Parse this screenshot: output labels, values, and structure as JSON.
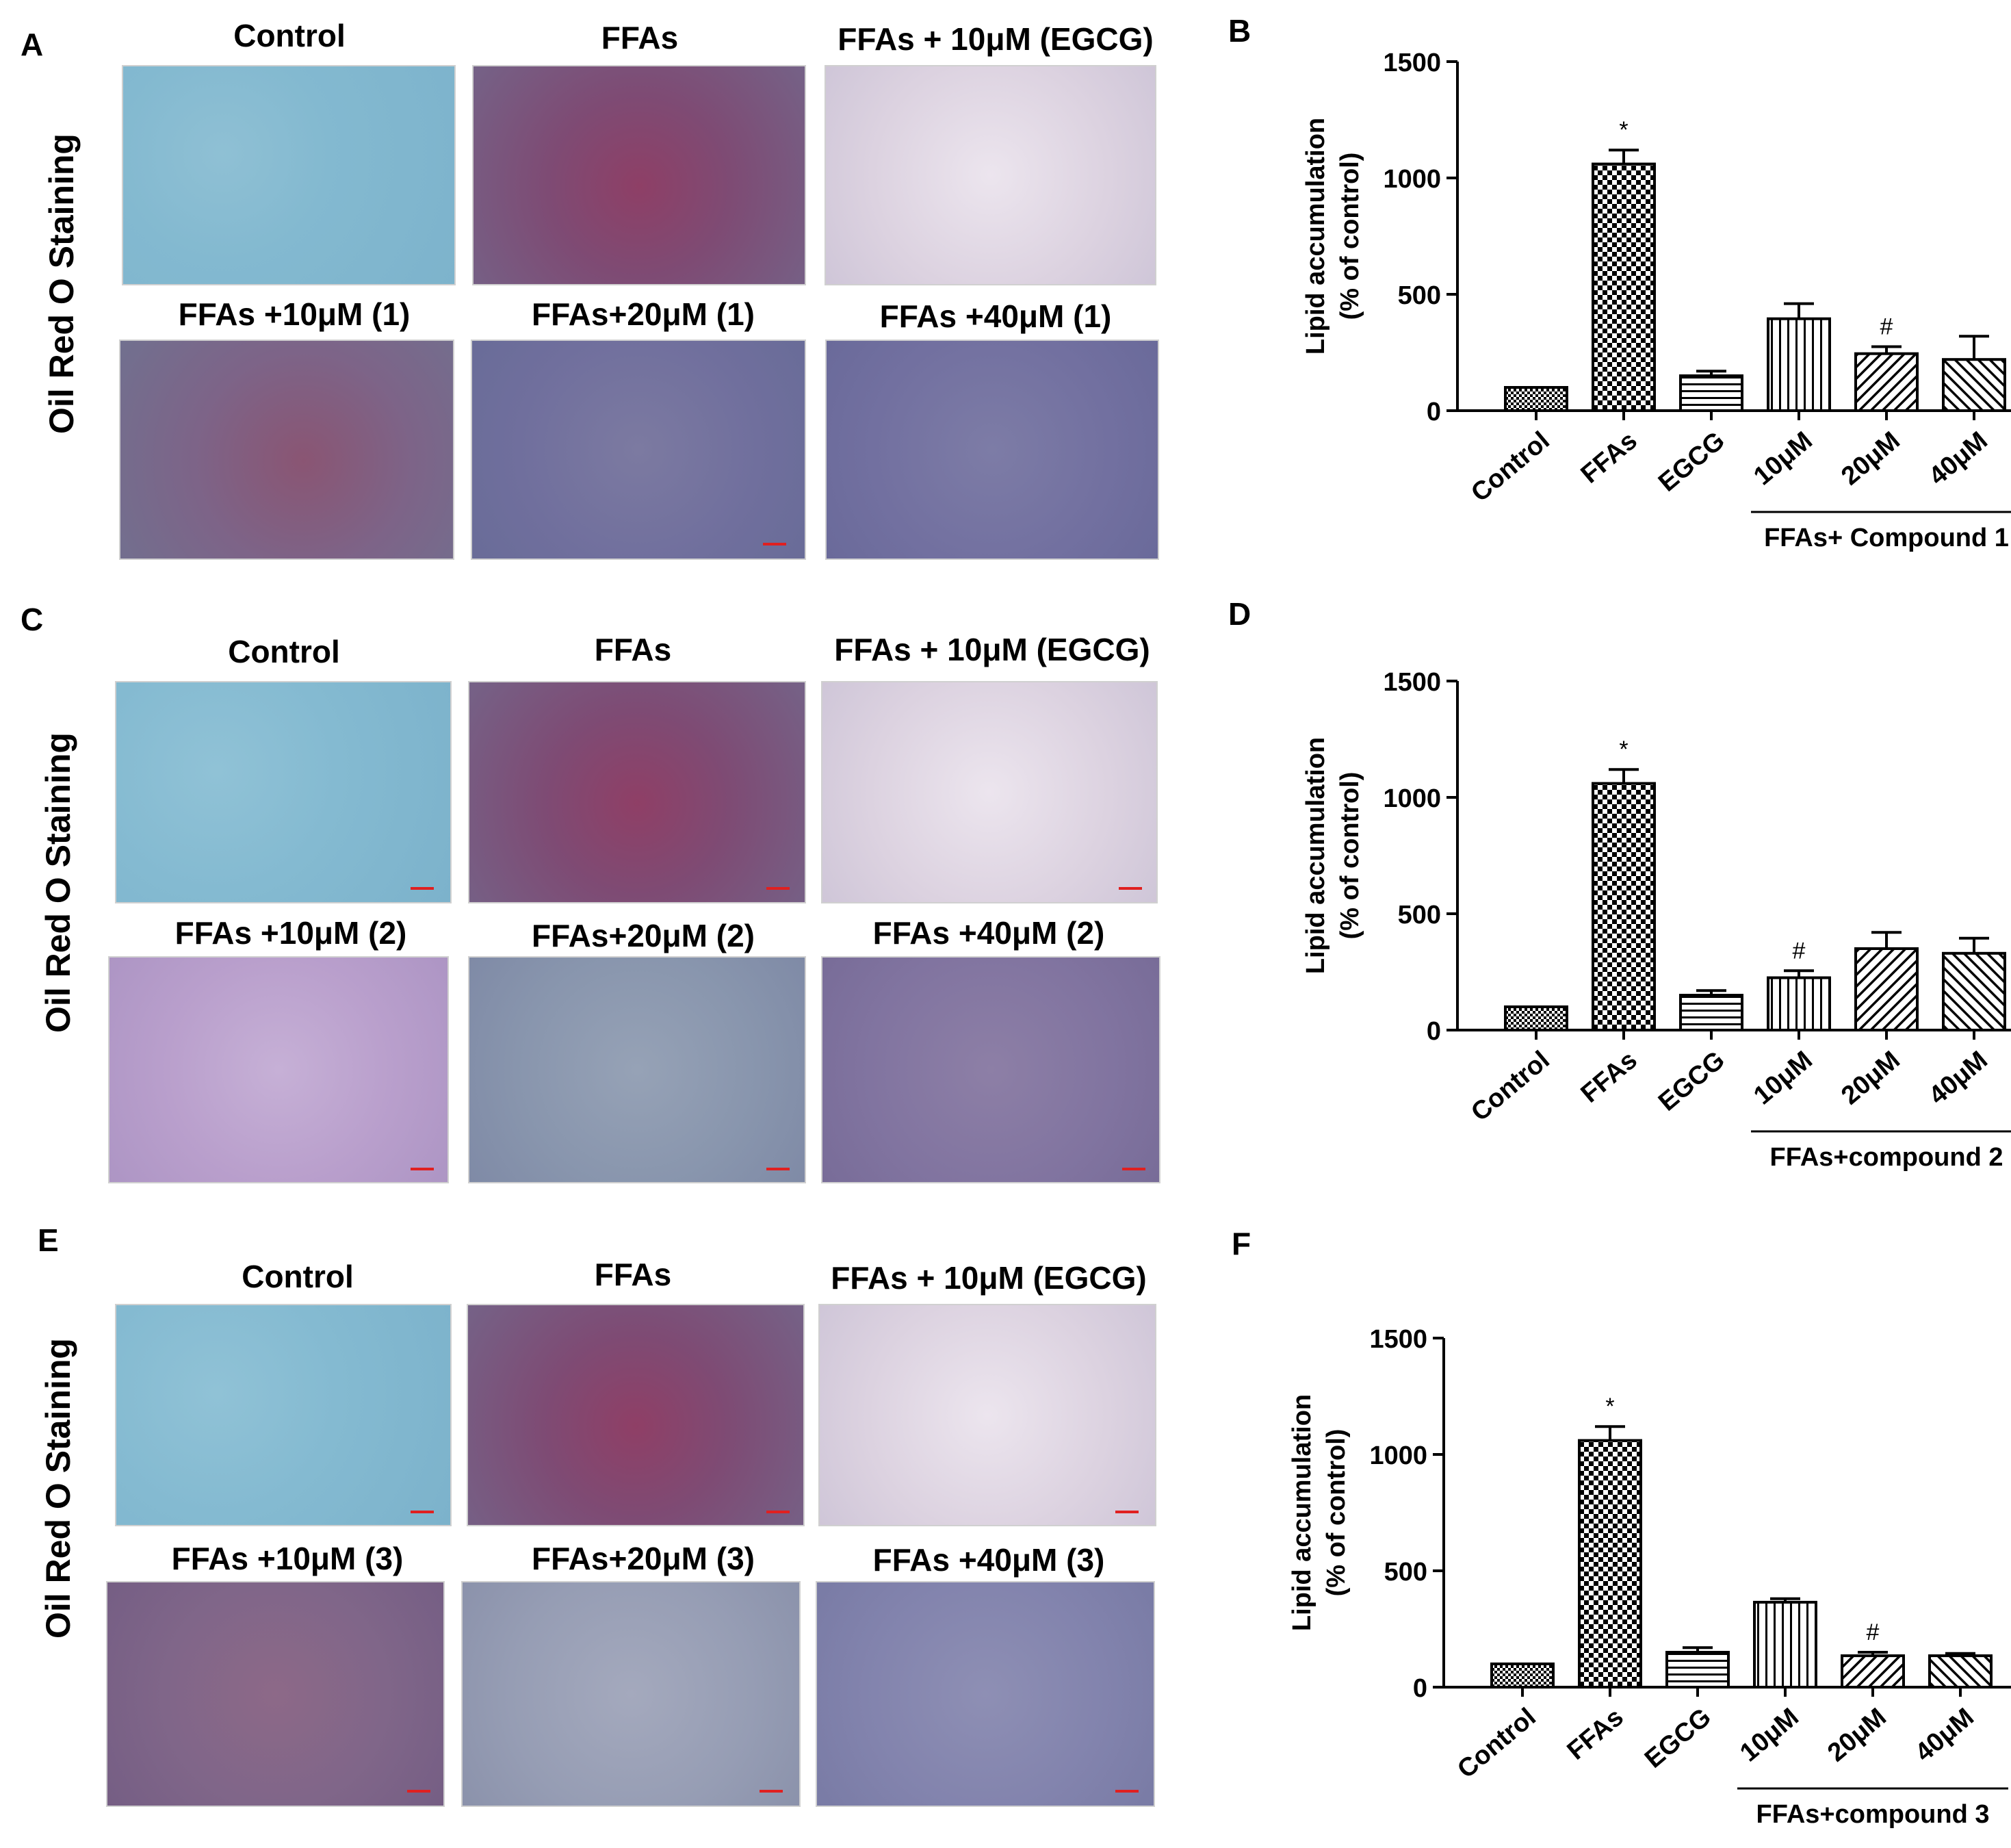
{
  "panels": [
    {
      "image_letter": "A",
      "chart_letter": "B",
      "side_label": "Oil Red O Staining",
      "titles": [
        "Control",
        "FFAs",
        "FFAs + 10μM (EGCG)",
        "FFAs +10μM (1)",
        "FFAs+20μM (1)",
        "FFAs +40μM (1)"
      ]
    },
    {
      "image_letter": "C",
      "chart_letter": "D",
      "side_label": "Oil Red O Staining",
      "titles": [
        "Control",
        "FFAs",
        "FFAs + 10μM (EGCG)",
        "FFAs +10μM (2)",
        "FFAs+20μM (2)",
        "FFAs +40μM (2)"
      ]
    },
    {
      "image_letter": "E",
      "chart_letter": "F",
      "side_label": "Oil Red O Staining",
      "titles": [
        "Control",
        "FFAs",
        "FFAs + 10μM (EGCG)",
        "FFAs +10μM (3)",
        "FFAs+20μM (3)",
        "FFAs +40μM (3)"
      ]
    }
  ],
  "chart_data": [
    {
      "type": "bar",
      "categories": [
        "Control",
        "FFAs",
        "EGCG",
        "10μM",
        "20μM",
        "40μM"
      ],
      "values": [
        100,
        1060,
        150,
        395,
        245,
        220
      ],
      "errors": [
        0,
        60,
        20,
        65,
        30,
        100
      ],
      "annotations": [
        "",
        "*",
        "",
        "",
        "#",
        ""
      ],
      "ylabel": "Lipid accumulation",
      "ylabel2": "(% of control)",
      "ylim": [
        0,
        1500
      ],
      "yticks": [
        0,
        500,
        1000,
        1500
      ],
      "group_label": "FFAs+ Compound 1"
    },
    {
      "type": "bar",
      "categories": [
        "Control",
        "FFAs",
        "EGCG",
        "10μM",
        "20μM",
        "40μM"
      ],
      "values": [
        100,
        1060,
        150,
        225,
        350,
        330
      ],
      "errors": [
        0,
        60,
        20,
        30,
        70,
        65
      ],
      "annotations": [
        "",
        "*",
        "",
        "#",
        "",
        ""
      ],
      "ylabel": "Lipid accumulation",
      "ylabel2": "(% of control)",
      "ylim": [
        0,
        1500
      ],
      "yticks": [
        0,
        500,
        1000,
        1500
      ],
      "group_label": "FFAs+compound 2"
    },
    {
      "type": "bar",
      "categories": [
        "Control",
        "FFAs",
        "EGCG",
        "10μM",
        "20μM",
        "40μM"
      ],
      "values": [
        100,
        1060,
        150,
        365,
        135,
        135
      ],
      "errors": [
        0,
        60,
        20,
        15,
        15,
        10
      ],
      "annotations": [
        "",
        "*",
        "",
        "",
        "#",
        ""
      ],
      "ylabel": "Lipid accumulation",
      "ylabel2": "(% of control)",
      "ylim": [
        0,
        1500
      ],
      "yticks": [
        0,
        500,
        1000,
        1500
      ],
      "group_label": "FFAs+compound 3"
    }
  ]
}
